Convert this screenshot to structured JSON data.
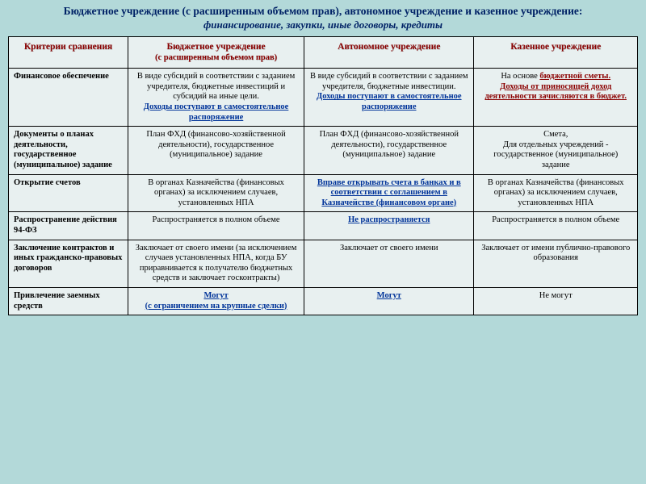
{
  "title": {
    "main": "Бюджетное учреждение (с расширенным объемом прав), автономное учреждение и казенное учреждение:",
    "sub": "финансирование, закупки, иные договоры, кредиты"
  },
  "headers": {
    "col0": "Критерии сравнения",
    "col1_main": "Бюджетное учреждение",
    "col1_sub": "(с расширенным объемом прав)",
    "col2": "Автономное учреждение",
    "col3": "Казенное учреждение"
  },
  "rows": {
    "r0": {
      "crit": "Финансовое обеспечение",
      "c1_text": "В виде субсидий в соответствии с заданием учредителя, бюджетные инвестиций и субсидий на иные цели.",
      "c1_link": "Доходы поступают в самостоятельное распоряжение",
      "c2_text": "В виде субсидий в соответствии с заданием учредителя, бюджетные инвестиции.",
      "c2_link": "Доходы поступают в самостоятельное распоряжение",
      "c3_pre": "На основе ",
      "c3_link1": "бюджетной сметы.",
      "c3_link2": "Доходы от приносящей доход деятельности зачисляются в бюджет."
    },
    "r1": {
      "crit": "Документы о планах деятельности, государственное (муниципальное) задание",
      "c1": "План ФХД (финансово-хозяйственной деятельности), государственное (муниципальное) задание",
      "c2": "План ФХД (финансово-хозяйственной деятельности), государственное (муниципальное) задание",
      "c3_a": "Смета,",
      "c3_b": "Для отдельных учреждений - государственное (муниципальное) задание"
    },
    "r2": {
      "crit": "Открытие счетов",
      "c1": "В органах Казначейства (финансовых органах) за исключением случаев, установленных НПА",
      "c2_link": "Вправе открывать счета в банках и в соответствии с соглашением в Казначействе (финансовом органе)",
      "c3": "В органах Казначейства (финансовых органах) за исключением случаев, установленных НПА"
    },
    "r3": {
      "crit": "Распространение действия  94-ФЗ",
      "c1": "Распространяется в полном объеме",
      "c2_link": "Не распространяется",
      "c3": "Распространяется в полном объеме"
    },
    "r4": {
      "crit": "Заключение контрактов и иных гражданско-правовых договоров",
      "c1": "Заключает от своего имени (за исключением случаев установленных НПА, когда БУ приравнивается к получателю бюджетных средств и заключает госконтракты)",
      "c2": "Заключает от своего имени",
      "c3": "Заключает от имени публично-правового образования"
    },
    "r5": {
      "crit": "Привлечение заемных средств",
      "c1_link": "Могут",
      "c1_sub": "(с ограничением на крупные сделки)",
      "c2_link": "Могут",
      "c3": "Не могут"
    }
  }
}
